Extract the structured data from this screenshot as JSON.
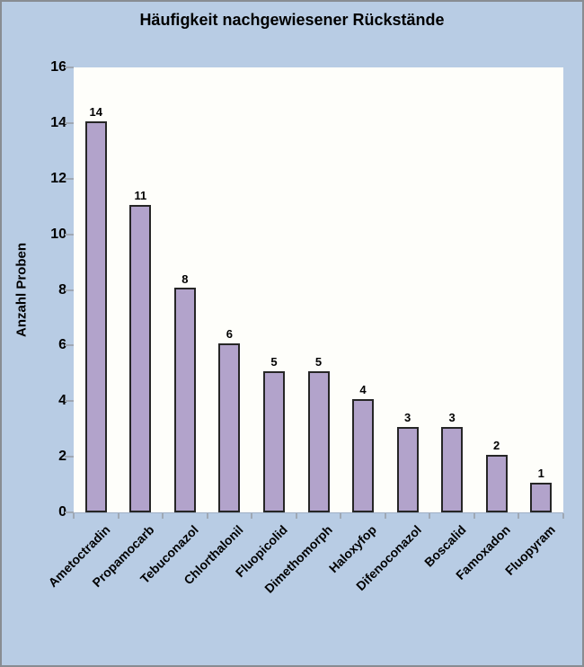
{
  "chart_data": {
    "type": "bar",
    "title": "Häufigkeit nachgewiesener Rückstände",
    "ylabel": "Anzahl Proben",
    "xlabel": "",
    "categories": [
      "Ametoctradin",
      "Propamocarb",
      "Tebuconazol",
      "Chlorthalonil",
      "Fluopicolid",
      "Dimethomorph",
      "Haloxyfop",
      "Difenoconazol",
      "Boscalid",
      "Famoxadon",
      "Fluopyram"
    ],
    "values": [
      14,
      11,
      8,
      6,
      5,
      5,
      4,
      3,
      3,
      2,
      1
    ],
    "ylim": [
      0,
      16
    ],
    "ytick_step": 2,
    "grid": false,
    "legend": false,
    "bar_labels_shown": true,
    "colors": {
      "background": "#B8CCE4",
      "plot_background": "#FEFEFA",
      "bar_fill": "#B2A3CB",
      "bar_border": "#262626",
      "axis": "#9FA8B4",
      "text": "#000000",
      "frame_border": "#888C92"
    }
  }
}
